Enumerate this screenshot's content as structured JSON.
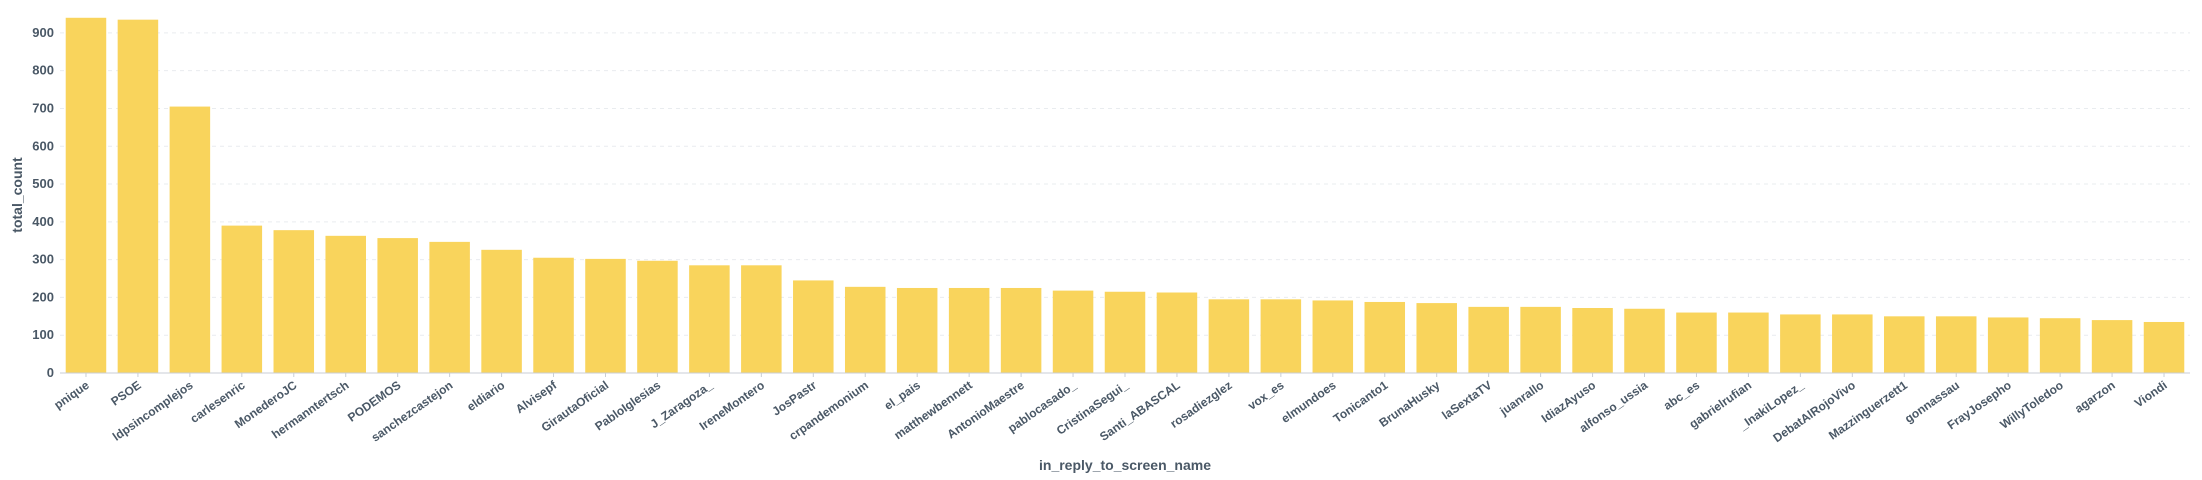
{
  "chart_data": {
    "type": "bar",
    "xlabel": "in_reply_to_screen_name",
    "ylabel": "total_count",
    "ylim": [
      0,
      950
    ],
    "yticks": [
      0,
      100,
      200,
      300,
      400,
      500,
      600,
      700,
      800,
      900
    ],
    "grid": true,
    "bar_color": "#f9d45c",
    "categories": [
      "pnique",
      "PSOE",
      "ldpsincomplejos",
      "carlesenric",
      "MonederoJC",
      "hermanntertsch",
      "PODEMOS",
      "sanchezcastejon",
      "eldiario",
      "Alvisepf",
      "GirautaOficial",
      "PabloIglesias",
      "J_Zaragoza_",
      "IreneMontero",
      "JosPastr",
      "crpandemonium",
      "el_pais",
      "matthewbennett",
      "AntonioMaestre",
      "pablocasado_",
      "CristinaSegui_",
      "Santi_ABASCAL",
      "rosadiezglez",
      "vox_es",
      "elmundoes",
      "Tonicanto1",
      "BrunaHusky",
      "laSextaTV",
      "juanrallo",
      "IdiazAyuso",
      "alfonso_ussia",
      "abc_es",
      "gabrielrufian",
      "_InakiLopez_",
      "DebatAlRojoVivo",
      "Mazzinguerzett1",
      "gonnassau",
      "FrayJosepho",
      "WillyToledoo",
      "agarzon",
      "Viondi"
    ],
    "values": [
      940,
      935,
      705,
      390,
      378,
      363,
      357,
      347,
      326,
      305,
      302,
      297,
      285,
      285,
      245,
      228,
      225,
      225,
      225,
      218,
      215,
      213,
      195,
      195,
      192,
      188,
      185,
      175,
      175,
      172,
      170,
      160,
      160,
      155,
      155,
      150,
      150,
      147,
      145,
      140,
      135
    ]
  }
}
